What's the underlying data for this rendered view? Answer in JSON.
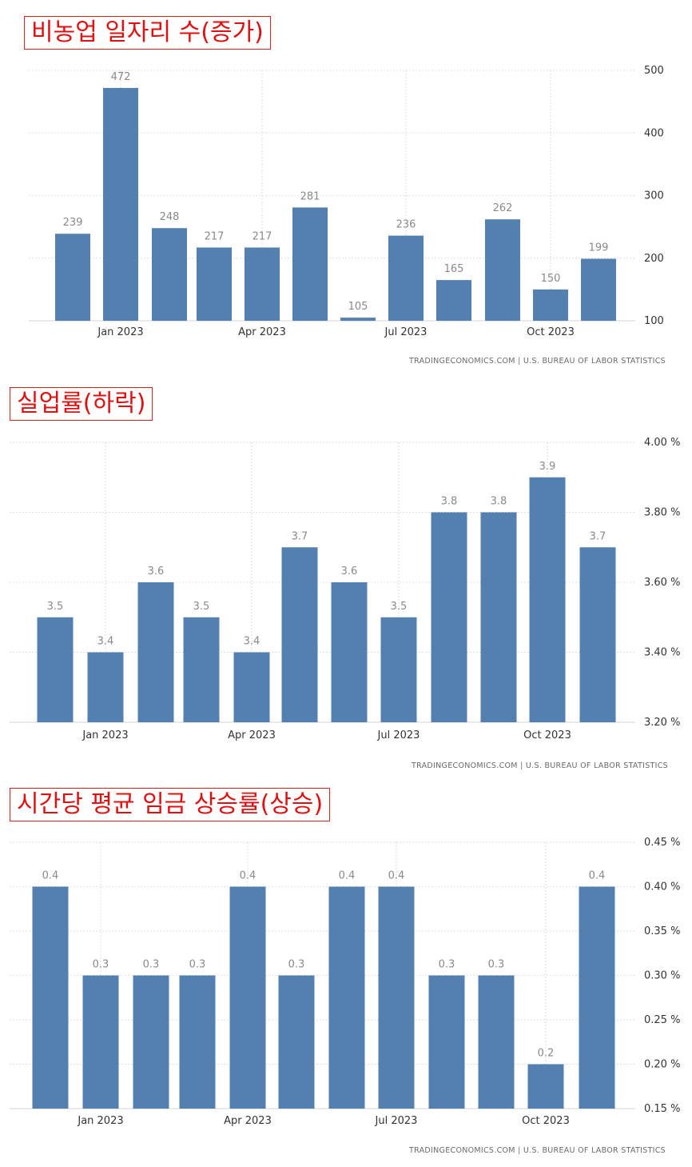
{
  "chart_data": [
    {
      "type": "bar",
      "title": "비농업 일자리 수(증가)",
      "categories": [
        "Dec 2022",
        "Jan 2023",
        "Feb 2023",
        "Mar 2023",
        "Apr 2023",
        "May 2023",
        "Jun 2023",
        "Jul 2023",
        "Aug 2023",
        "Sep 2023",
        "Oct 2023",
        "Nov 2023"
      ],
      "values": [
        239,
        472,
        248,
        217,
        217,
        281,
        105,
        236,
        165,
        262,
        150,
        199
      ],
      "data_labels": [
        "239",
        "472",
        "248",
        "217",
        "217",
        "281",
        "105",
        "236",
        "165",
        "262",
        "150",
        "199"
      ],
      "x_ticks": [
        "Jan 2023",
        "Apr 2023",
        "Jul 2023",
        "Oct 2023"
      ],
      "y_ticks": [
        "100",
        "200",
        "300",
        "400",
        "500"
      ],
      "ylim": [
        100,
        500
      ],
      "source": "TRADINGECONOMICS.COM  |  U.S. BUREAU OF LABOR STATISTICS",
      "grid": true,
      "y_axis_side": "right"
    },
    {
      "type": "bar",
      "title": "실업률(하락)",
      "categories": [
        "Dec 2022",
        "Jan 2023",
        "Feb 2023",
        "Mar 2023",
        "Apr 2023",
        "May 2023",
        "Jun 2023",
        "Jul 2023",
        "Aug 2023",
        "Sep 2023",
        "Oct 2023",
        "Nov 2023"
      ],
      "values": [
        3.5,
        3.4,
        3.6,
        3.5,
        3.4,
        3.7,
        3.6,
        3.5,
        3.8,
        3.8,
        3.9,
        3.7
      ],
      "data_labels": [
        "3.5",
        "3.4",
        "3.6",
        "3.5",
        "3.4",
        "3.7",
        "3.6",
        "3.5",
        "3.8",
        "3.8",
        "3.9",
        "3.7"
      ],
      "x_ticks": [
        "Jan 2023",
        "Apr 2023",
        "Jul 2023",
        "Oct 2023"
      ],
      "y_ticks": [
        "3.20 %",
        "3.40 %",
        "3.60 %",
        "3.80 %",
        "4.00 %"
      ],
      "ylim": [
        3.2,
        4.0
      ],
      "source": "TRADINGECONOMICS.COM  |  U.S. BUREAU OF LABOR STATISTICS",
      "grid": true,
      "y_axis_side": "right"
    },
    {
      "type": "bar",
      "title": "시간당 평균 임금 상승률(상승)",
      "categories": [
        "Dec 2022",
        "Jan 2023",
        "Feb 2023",
        "Mar 2023",
        "Apr 2023",
        "May 2023",
        "Jun 2023",
        "Jul 2023",
        "Aug 2023",
        "Sep 2023",
        "Oct 2023",
        "Nov 2023"
      ],
      "values": [
        0.4,
        0.3,
        0.3,
        0.3,
        0.4,
        0.3,
        0.4,
        0.4,
        0.3,
        0.3,
        0.2,
        0.4
      ],
      "data_labels": [
        "0.4",
        "0.3",
        "0.3",
        "0.3",
        "0.4",
        "0.3",
        "0.4",
        "0.4",
        "0.3",
        "0.3",
        "0.2",
        "0.4"
      ],
      "x_ticks": [
        "Jan 2023",
        "Apr 2023",
        "Jul 2023",
        "Oct 2023"
      ],
      "y_ticks": [
        "0.15 %",
        "0.20 %",
        "0.25 %",
        "0.30 %",
        "0.35 %",
        "0.40 %",
        "0.45 %"
      ],
      "ylim": [
        0.15,
        0.45
      ],
      "source": "TRADINGECONOMICS.COM  |  U.S. BUREAU OF LABOR STATISTICS",
      "grid": true,
      "y_axis_side": "right"
    }
  ],
  "colors": {
    "bar": "#5480b0",
    "title_text": "#e01010",
    "title_border": "#e02020"
  }
}
